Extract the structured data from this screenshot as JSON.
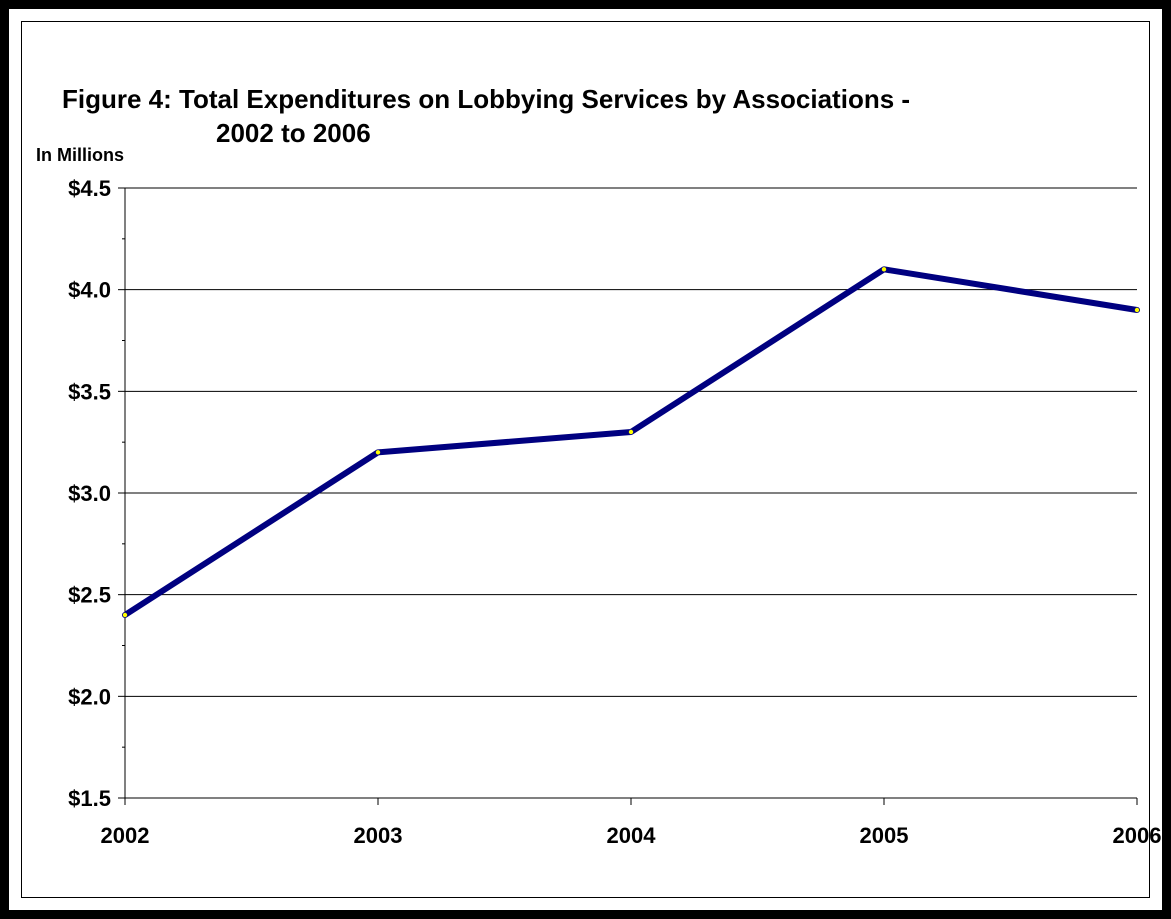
{
  "chart_data": {
    "type": "line",
    "title_line1": "Figure 4:  Total  Expenditures on Lobbying Services by Associations -",
    "title_line2": "2002 to 2006",
    "ylabel": "In Millions",
    "xlabel": "",
    "categories": [
      "2002",
      "2003",
      "2004",
      "2005",
      "2006"
    ],
    "series": [
      {
        "values": [
          2.4,
          3.2,
          3.3,
          4.1,
          3.9
        ]
      }
    ],
    "ylim": [
      1.5,
      4.5
    ],
    "yticks": [
      1.5,
      2.0,
      2.5,
      3.0,
      3.5,
      4.0,
      4.5
    ],
    "ytick_labels": [
      "$1.5",
      "$2.0",
      "$2.5",
      "$3.0",
      "$3.5",
      "$4.0",
      "$4.5"
    ],
    "grid": true,
    "line_color": "#000080",
    "marker_color": "#ffff00",
    "gridline_color": "#000000"
  }
}
